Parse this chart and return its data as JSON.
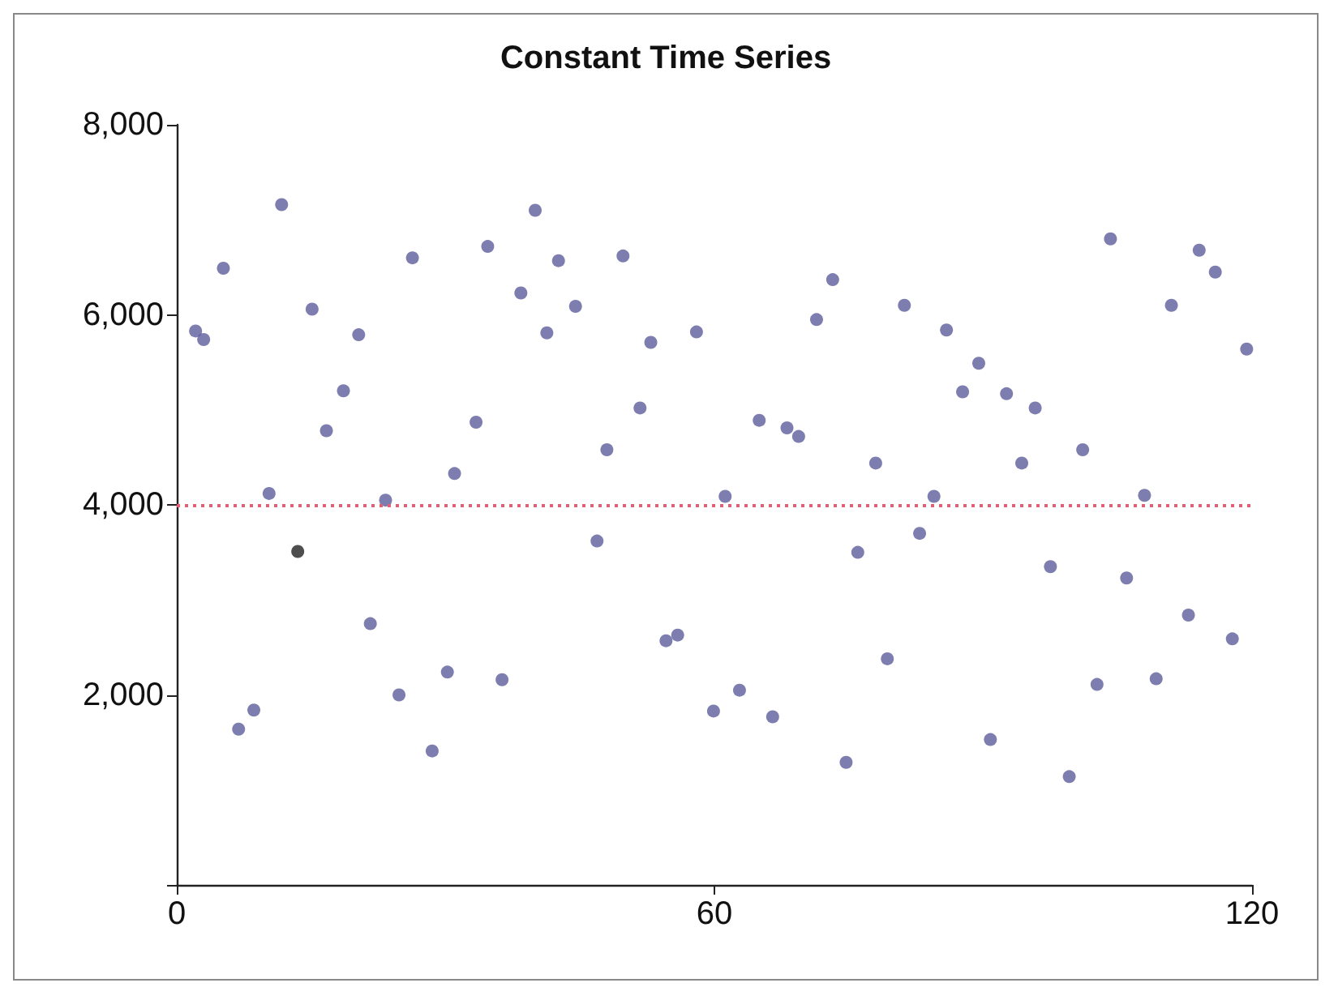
{
  "chart_data": {
    "type": "scatter",
    "title": "Constant Time Series",
    "x": [
      2.1,
      3.0,
      5.2,
      6.9,
      8.6,
      10.3,
      11.7,
      13.5,
      15.1,
      16.7,
      18.6,
      20.3,
      21.6,
      23.3,
      24.8,
      26.3,
      28.5,
      30.2,
      31.0,
      33.4,
      34.7,
      36.3,
      38.4,
      40.0,
      41.3,
      42.6,
      44.5,
      46.9,
      48.0,
      49.8,
      51.7,
      52.9,
      54.6,
      55.9,
      58.0,
      59.9,
      61.2,
      62.8,
      65.0,
      66.5,
      68.1,
      69.4,
      71.4,
      73.2,
      74.7,
      76.0,
      78.0,
      79.3,
      81.2,
      82.9,
      84.5,
      85.9,
      87.7,
      89.5,
      90.8,
      92.6,
      94.3,
      95.8,
      97.5,
      99.6,
      101.1,
      102.7,
      104.2,
      106.0,
      108.0,
      109.3,
      111.0,
      112.9,
      114.1,
      115.9,
      117.8,
      119.4
    ],
    "values": [
      5830,
      5740,
      6490,
      1640,
      1840,
      4120,
      7160,
      3510,
      6060,
      4780,
      5200,
      5790,
      2750,
      4050,
      2000,
      6600,
      1410,
      2240,
      4330,
      4870,
      6720,
      2160,
      6230,
      7100,
      5810,
      6570,
      6090,
      3620,
      4580,
      6620,
      5020,
      5710,
      2570,
      2630,
      5820,
      1830,
      4090,
      2050,
      4890,
      1770,
      4810,
      4720,
      5950,
      6370,
      1290,
      3500,
      4440,
      2380,
      6100,
      3700,
      4090,
      5840,
      5190,
      5490,
      1530,
      5170,
      4440,
      5020,
      3350,
      1140,
      4580,
      2110,
      6800,
      3230,
      4100,
      2170,
      6100,
      2840,
      6680,
      6450,
      2590,
      5640
    ],
    "colors": [
      "#5c5c9c",
      "#5c5c9c",
      "#5c5c9c",
      "#5c5c9c",
      "#5c5c9c",
      "#5c5c9c",
      "#5c5c9c",
      "#222222",
      "#5c5c9c",
      "#5c5c9c",
      "#5c5c9c",
      "#5c5c9c",
      "#5c5c9c",
      "#5c5c9c",
      "#5c5c9c",
      "#5c5c9c",
      "#5c5c9c",
      "#5c5c9c",
      "#5c5c9c",
      "#5c5c9c",
      "#5c5c9c",
      "#5c5c9c",
      "#5c5c9c",
      "#5c5c9c",
      "#5c5c9c",
      "#5c5c9c",
      "#5c5c9c",
      "#5c5c9c",
      "#5c5c9c",
      "#5c5c9c",
      "#5c5c9c",
      "#5c5c9c",
      "#5c5c9c",
      "#5c5c9c",
      "#5c5c9c",
      "#5c5c9c",
      "#5c5c9c",
      "#5c5c9c",
      "#5c5c9c",
      "#5c5c9c",
      "#5c5c9c",
      "#5c5c9c",
      "#5c5c9c",
      "#5c5c9c",
      "#5c5c9c",
      "#5c5c9c",
      "#5c5c9c",
      "#5c5c9c",
      "#5c5c9c",
      "#5c5c9c",
      "#5c5c9c",
      "#5c5c9c",
      "#5c5c9c",
      "#5c5c9c",
      "#5c5c9c",
      "#5c5c9c",
      "#5c5c9c",
      "#5c5c9c",
      "#5c5c9c",
      "#5c5c9c",
      "#5c5c9c",
      "#5c5c9c",
      "#5c5c9c",
      "#5c5c9c",
      "#5c5c9c",
      "#5c5c9c",
      "#5c5c9c",
      "#5c5c9c",
      "#5c5c9c",
      "#5c5c9c",
      "#5c5c9c",
      "#5c5c9c"
    ],
    "xlim": [
      0,
      120
    ],
    "xticks": [
      0,
      60,
      120
    ],
    "ylim": [
      0,
      8000
    ],
    "yticks": [
      {
        "value": 0,
        "label": null
      },
      {
        "value": 2000,
        "label": "2,000"
      },
      {
        "value": 4000,
        "label": "4,000"
      },
      {
        "value": 6000,
        "label": "6,000"
      },
      {
        "value": 8000,
        "label": "8,000"
      }
    ],
    "ref_lines": [
      {
        "axis": "y",
        "value": 4000,
        "label": null,
        "color": "#e06078",
        "line_style": "dotted"
      }
    ],
    "marker": "circle"
  }
}
